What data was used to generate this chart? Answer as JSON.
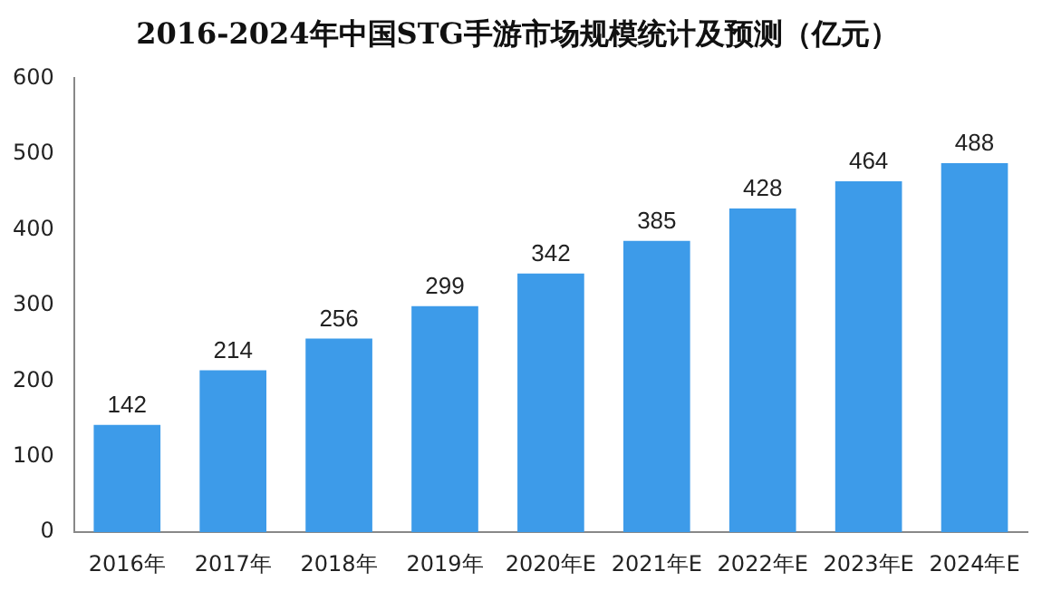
{
  "chart_data": {
    "type": "bar",
    "title": "2016-2024年中国STG手游市场规模统计及预测（亿元）",
    "categories": [
      "2016年",
      "2017年",
      "2018年",
      "2019年",
      "2020年E",
      "2021年E",
      "2022年E",
      "2023年E",
      "2024年E"
    ],
    "values": [
      142,
      214,
      256,
      299,
      342,
      385,
      428,
      464,
      488
    ],
    "color": "#3d9be9",
    "ylim": [
      0,
      600
    ],
    "yticks": [
      0,
      100,
      200,
      300,
      400,
      500,
      600
    ],
    "grid": false,
    "legend": false,
    "data_labels": true
  }
}
